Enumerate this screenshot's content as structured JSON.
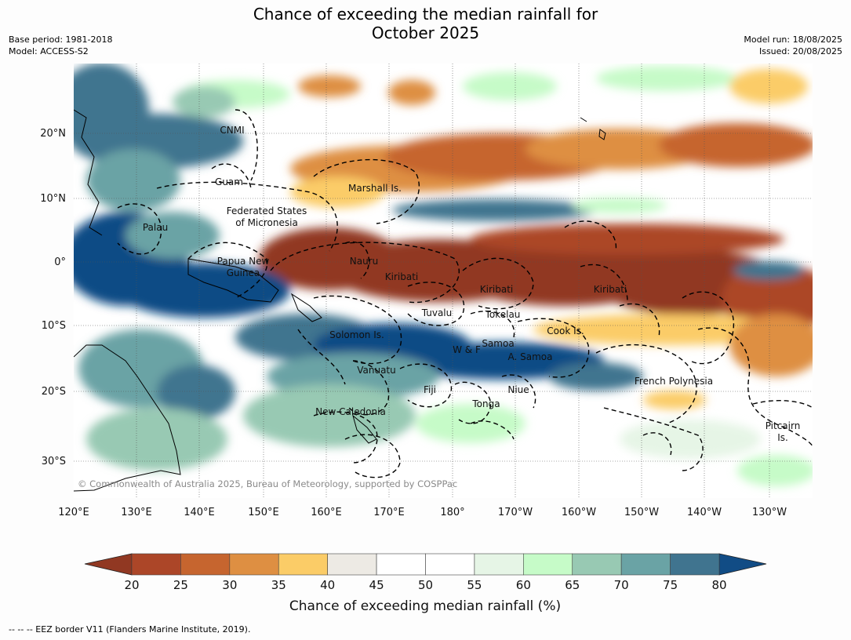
{
  "title_line1": "Chance of exceeding the median rainfall for",
  "title_line2": "October 2025",
  "base_period": "Base period: 1981-2018",
  "model": "Model: ACCESS-S2",
  "model_run": "Model run: 18/08/2025",
  "issued": "Issued: 20/08/2025",
  "copyright": "© Commonwealth of Australia 2025, Bureau of Meteorology, supported by COSPPac",
  "footer": "--  --  -- EEZ border V11 (Flanders Marine Institute, 2019).",
  "lat_ticks": [
    "20°N",
    "10°N",
    "0°",
    "10°S",
    "20°S",
    "30°S"
  ],
  "lon_ticks": [
    "120°E",
    "130°E",
    "140°E",
    "150°E",
    "160°E",
    "170°E",
    "180°",
    "170°W",
    "160°W",
    "150°W",
    "140°W",
    "130°W"
  ],
  "regions": [
    {
      "text": "CNMI"
    },
    {
      "text": "Guam"
    },
    {
      "text": "Marshall Is."
    },
    {
      "text": "Federated States"
    },
    {
      "text": "of Micronesia"
    },
    {
      "text": "Palau"
    },
    {
      "text": "Papua New"
    },
    {
      "text": "Guinea"
    },
    {
      "text": "Nauru"
    },
    {
      "text": "Kiribati"
    },
    {
      "text": "Kiribati"
    },
    {
      "text": "Kiribati"
    },
    {
      "text": "Tuvalu"
    },
    {
      "text": "Tokelau"
    },
    {
      "text": "Cook Is."
    },
    {
      "text": "Solomon Is."
    },
    {
      "text": "Samoa"
    },
    {
      "text": "W & F"
    },
    {
      "text": "A. Samoa"
    },
    {
      "text": "Vanuatu"
    },
    {
      "text": "Fiji"
    },
    {
      "text": "Niue"
    },
    {
      "text": "Tonga"
    },
    {
      "text": "French Polynesia"
    },
    {
      "text": "New Caledonia"
    },
    {
      "text": "Pitcairn"
    },
    {
      "text": "Is."
    }
  ],
  "colorbar": {
    "label": "Chance of exceeding median rainfall (%)",
    "ticks": [
      "20",
      "25",
      "30",
      "35",
      "40",
      "45",
      "50",
      "55",
      "60",
      "65",
      "70",
      "75",
      "80"
    ],
    "under_color": "#913822",
    "over_color": "#114c85",
    "colors": [
      "#ac4628",
      "#c6652f",
      "#de8f42",
      "#fbcc67",
      "#edeae4",
      "#ffffff",
      "#ffffff",
      "#e6f5e6",
      "#c6fbc8",
      "#98c9b3",
      "#6aa3a5",
      "#40748f"
    ]
  }
}
